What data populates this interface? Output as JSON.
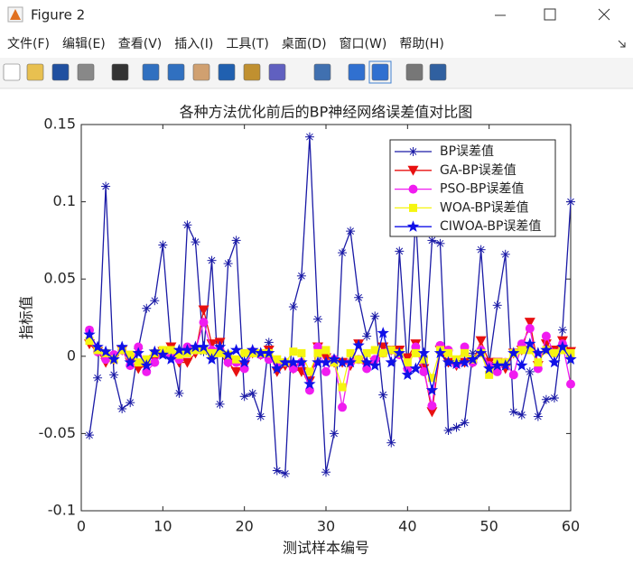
{
  "window": {
    "title": "Figure 2",
    "menu": [
      "文件(F)",
      "编辑(E)",
      "查看(V)",
      "插入(I)",
      "工具(T)",
      "桌面(D)",
      "窗口(W)",
      "帮助(H)"
    ]
  },
  "chart_data": {
    "type": "line",
    "title": "各种方法优化前后的BP神经网络误差值对比图",
    "xlabel": "测试样本编号",
    "ylabel": "指标值",
    "x": [
      1,
      2,
      3,
      4,
      5,
      6,
      7,
      8,
      9,
      10,
      11,
      12,
      13,
      14,
      15,
      16,
      17,
      18,
      19,
      20,
      21,
      22,
      23,
      24,
      25,
      26,
      27,
      28,
      29,
      30,
      31,
      32,
      33,
      34,
      35,
      36,
      37,
      38,
      39,
      40,
      41,
      42,
      43,
      44,
      45,
      46,
      47,
      48,
      49,
      50,
      51,
      52,
      53,
      54,
      55,
      56,
      57,
      58,
      59,
      60
    ],
    "xlim": [
      0,
      60
    ],
    "xticks": [
      0,
      10,
      20,
      30,
      40,
      50,
      60
    ],
    "ylim": [
      -0.1,
      0.15
    ],
    "yticks": [
      -0.1,
      -0.05,
      0,
      0.05,
      0.1,
      0.15
    ],
    "grid": false,
    "legend_position": "upper right",
    "series": [
      {
        "name": "BP误差值",
        "color": "#1a1aa6",
        "marker": "asterisk",
        "values": [
          -0.051,
          -0.014,
          0.11,
          -0.012,
          -0.034,
          -0.03,
          0.005,
          0.031,
          0.036,
          0.072,
          0.005,
          -0.024,
          0.085,
          0.074,
          0.003,
          0.062,
          -0.031,
          0.06,
          0.075,
          -0.026,
          -0.024,
          -0.039,
          0.009,
          -0.074,
          -0.076,
          0.032,
          0.052,
          0.142,
          0.024,
          -0.075,
          -0.05,
          0.067,
          0.081,
          0.038,
          0.013,
          0.026,
          -0.025,
          -0.056,
          0.068,
          -0.008,
          0.09,
          -0.01,
          0.075,
          0.073,
          -0.048,
          -0.046,
          -0.043,
          0.002,
          0.069,
          -0.005,
          0.033,
          0.066,
          -0.036,
          -0.038,
          -0.01,
          -0.039,
          -0.028,
          -0.027,
          0.017,
          0.1
        ]
      },
      {
        "name": "GA-BP误差值",
        "color": "#e81010",
        "marker": "triangle-down",
        "values": [
          0.008,
          0.003,
          -0.004,
          -0.002,
          0.004,
          -0.004,
          -0.008,
          -0.006,
          -0.002,
          0.003,
          0.006,
          -0.004,
          -0.004,
          0.002,
          0.03,
          0.008,
          0.009,
          -0.004,
          -0.01,
          -0.006,
          0.002,
          0.001,
          0.004,
          -0.01,
          -0.006,
          -0.008,
          -0.01,
          -0.016,
          0.006,
          -0.001,
          -0.004,
          -0.004,
          -0.006,
          0.008,
          -0.006,
          -0.004,
          0.006,
          0.004,
          0.004,
          -0.001,
          0.008,
          -0.008,
          -0.036,
          0.004,
          -0.004,
          -0.006,
          -0.004,
          -0.004,
          0.01,
          -0.004,
          -0.004,
          -0.008,
          0.002,
          0.004,
          0.022,
          -0.006,
          0.008,
          0.004,
          0.01,
          0.003
        ]
      },
      {
        "name": "PSO-BP误差值",
        "color": "#f01cf0",
        "marker": "circle",
        "values": [
          0.017,
          0.003,
          -0.002,
          0.001,
          0.004,
          -0.006,
          0.006,
          -0.01,
          -0.004,
          0.002,
          0.001,
          -0.002,
          0.006,
          0.004,
          0.022,
          0.004,
          0.004,
          -0.004,
          -0.004,
          -0.008,
          0.003,
          0.001,
          -0.002,
          -0.004,
          -0.004,
          -0.008,
          -0.004,
          -0.022,
          0.006,
          -0.01,
          -0.002,
          -0.033,
          -0.004,
          -0.002,
          -0.008,
          -0.002,
          0.002,
          0.004,
          0.001,
          -0.008,
          0.006,
          -0.01,
          -0.032,
          0.007,
          0.004,
          -0.005,
          0.006,
          -0.004,
          0.004,
          -0.006,
          -0.01,
          -0.004,
          -0.012,
          0.008,
          0.018,
          -0.008,
          0.013,
          0.002,
          0.008,
          -0.018
        ]
      },
      {
        "name": "WOA-BP误差值",
        "color": "#f5f510",
        "marker": "square",
        "values": [
          0.01,
          0.004,
          0.002,
          -0.002,
          0.004,
          0.001,
          -0.004,
          -0.002,
          0.002,
          0.004,
          0.004,
          0.001,
          0.002,
          0.004,
          0.004,
          0.002,
          0.002,
          0.001,
          -0.002,
          0.002,
          0.002,
          0.002,
          0.002,
          -0.002,
          -0.004,
          0.003,
          0.002,
          -0.01,
          0.002,
          0.004,
          -0.004,
          -0.02,
          0.002,
          -0.002,
          0.002,
          0.004,
          0.002,
          0.004,
          0.002,
          -0.004,
          0.002,
          -0.002,
          -0.014,
          0.004,
          0.002,
          -0.002,
          0.002,
          -0.002,
          0.002,
          -0.012,
          -0.004,
          -0.004,
          0.002,
          0.004,
          0.004,
          -0.004,
          0.004,
          0.002,
          0.004,
          0.002
        ]
      },
      {
        "name": "CIWOA-BP误差值",
        "color": "#1010e8",
        "marker": "star",
        "values": [
          0.014,
          0.006,
          0.003,
          -0.002,
          0.006,
          -0.004,
          0.002,
          -0.006,
          0.003,
          0.001,
          -0.002,
          0.004,
          0.004,
          0.006,
          0.006,
          -0.002,
          0.006,
          0.001,
          0.004,
          -0.004,
          0.004,
          0.002,
          0.002,
          -0.008,
          -0.004,
          -0.004,
          -0.004,
          -0.018,
          -0.004,
          -0.004,
          -0.002,
          -0.004,
          -0.004,
          0.007,
          -0.004,
          -0.006,
          0.015,
          -0.004,
          0.002,
          -0.012,
          -0.008,
          0.002,
          -0.022,
          0.002,
          -0.004,
          -0.005,
          -0.004,
          -0.002,
          0.002,
          -0.008,
          -0.006,
          -0.006,
          0.002,
          -0.006,
          0.008,
          0.002,
          0.004,
          -0.004,
          0.006,
          -0.002
        ]
      }
    ]
  }
}
